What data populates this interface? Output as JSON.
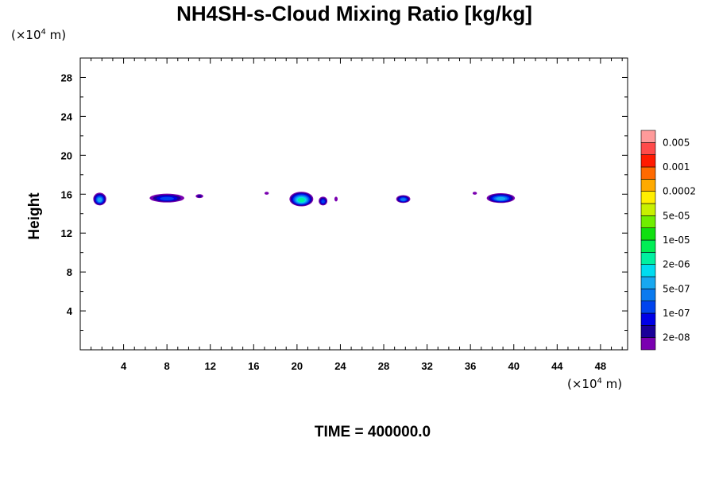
{
  "chart_data": {
    "type": "heatmap",
    "title": "NH4SH-s-Cloud Mixing Ratio [kg/kg]",
    "ylabel": "Height",
    "x_unit_label": {
      "prefix": "(×10",
      "exp": "4",
      "suffix": " m)"
    },
    "y_unit_label": {
      "prefix": "(×10",
      "exp": "4",
      "suffix": " m)"
    },
    "xlim": [
      0,
      50.5
    ],
    "ylim": [
      0,
      30
    ],
    "xticks": [
      4,
      8,
      12,
      16,
      20,
      24,
      28,
      32,
      36,
      40,
      44,
      48
    ],
    "yticks": [
      4,
      8,
      12,
      16,
      20,
      24,
      28
    ],
    "time_label": "TIME = 400000.0",
    "colorbar": {
      "colors": [
        "#7a00b0",
        "#1a0099",
        "#0000e6",
        "#0044ee",
        "#0a7aef",
        "#18a8f0",
        "#00dcf0",
        "#00f0a0",
        "#00ee55",
        "#10e010",
        "#70ee00",
        "#c8f000",
        "#ffee00",
        "#ffaa00",
        "#ff6a00",
        "#ff1a00",
        "#ff4a4a",
        "#ff9a9a"
      ],
      "labels": [
        "2e-08",
        "1e-07",
        "5e-07",
        "2e-06",
        "1e-05",
        "5e-05",
        "0.0002",
        "0.001",
        "0.005"
      ]
    },
    "clouds": [
      {
        "x": 1.8,
        "y": 15.5,
        "w": 1.2,
        "h": 1.3,
        "peak": 6
      },
      {
        "x": 8.0,
        "y": 15.6,
        "w": 3.2,
        "h": 0.9,
        "peak": 4
      },
      {
        "x": 11.0,
        "y": 15.8,
        "w": 0.7,
        "h": 0.4,
        "peak": 2
      },
      {
        "x": 17.2,
        "y": 16.1,
        "w": 0.4,
        "h": 0.3,
        "peak": 1
      },
      {
        "x": 20.4,
        "y": 15.5,
        "w": 2.2,
        "h": 1.5,
        "peak": 8
      },
      {
        "x": 22.4,
        "y": 15.3,
        "w": 0.8,
        "h": 0.9,
        "peak": 4
      },
      {
        "x": 23.6,
        "y": 15.5,
        "w": 0.3,
        "h": 0.5,
        "peak": 1
      },
      {
        "x": 29.8,
        "y": 15.5,
        "w": 1.3,
        "h": 0.8,
        "peak": 5
      },
      {
        "x": 36.4,
        "y": 16.1,
        "w": 0.4,
        "h": 0.3,
        "peak": 1
      },
      {
        "x": 38.8,
        "y": 15.6,
        "w": 2.6,
        "h": 1.0,
        "peak": 6
      }
    ]
  }
}
